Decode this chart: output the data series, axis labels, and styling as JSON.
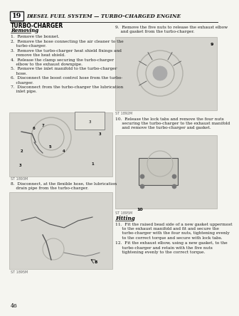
{
  "page_num": "19",
  "header_title": "DIESEL FUEL SYSTEM — TURBO-CHARGED ENGINE",
  "section_title": "TURBO-CHARGER",
  "subsection_removing": "Removing",
  "removing_steps": [
    "1.  Remove the bonnet.",
    "2.  Remove the hose connecting the air cleaner to the\n    turbo-charger.",
    "3.  Remove the turbo-charger heat shield fixings and\n    remove the heat shield.",
    "4.  Release the clamp securing the turbo-charger\n    elbow to the exhaust downpipe.",
    "5.  Remove the inlet manifold to the turbo-charger\n    hose.",
    "6.  Disconnect the boost control hose from the turbo-\n    charger.",
    "7.  Disconnect from the turbo-charger the lubrication\n    inlet pipe."
  ],
  "step8": "8.  Disconnect, at the flexible hose, the lubrication\n    drain pipe from the turbo-charger.",
  "step9": "9.  Remove the five nuts to release the exhaust elbow\n    and gasket from the turbo-charger.",
  "step10": "10.  Release the lock tabs and remove the four nuts\n     securing the turbo-charger to the exhaust manifold\n     and remove the turbo-charger and gasket.",
  "subsection_fitting": "Fitting",
  "fitting_steps": [
    "11.  Fit the raised bead side of a new gasket uppermost\n     to the exhaust manifold and fit and secure the\n     turbo-charger with the four nuts, tightening evenly\n     to the correct torque and secure with lock tabs.",
    "12.  Fit the exhaust elbow, using a new gasket, to the\n     turbo-charger and retain with the five nuts\n     tightening evenly to the correct torque."
  ],
  "page_number": "46",
  "bg_color": "#f5f5f0",
  "text_color": "#1a1a1a",
  "illus_color": "#d0cfc8",
  "illus_edge": "#999990"
}
